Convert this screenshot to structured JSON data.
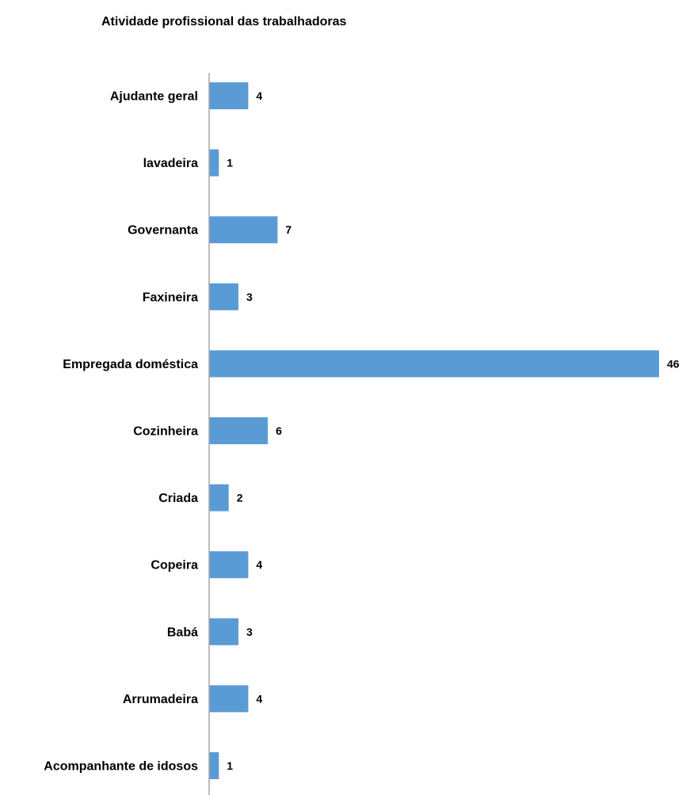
{
  "chart_data": {
    "type": "bar",
    "orientation": "horizontal",
    "title": "Atividade profissional das trabalhadoras",
    "xlabel": "",
    "ylabel": "",
    "categories": [
      "Ajudante geral",
      "lavadeira",
      "Governanta",
      "Faxineira",
      "Empregada doméstica",
      "Cozinheira",
      "Criada",
      "Copeira",
      "Babá",
      "Arrumadeira",
      "Acompanhante de idosos"
    ],
    "values": [
      4,
      1,
      7,
      3,
      46,
      6,
      2,
      4,
      3,
      4,
      1
    ],
    "xlim": [
      0,
      46
    ],
    "grid": false,
    "legend": "none",
    "data_labels": true,
    "bar_color": "#5B9BD5",
    "axis_color": "#A6A6A6"
  }
}
